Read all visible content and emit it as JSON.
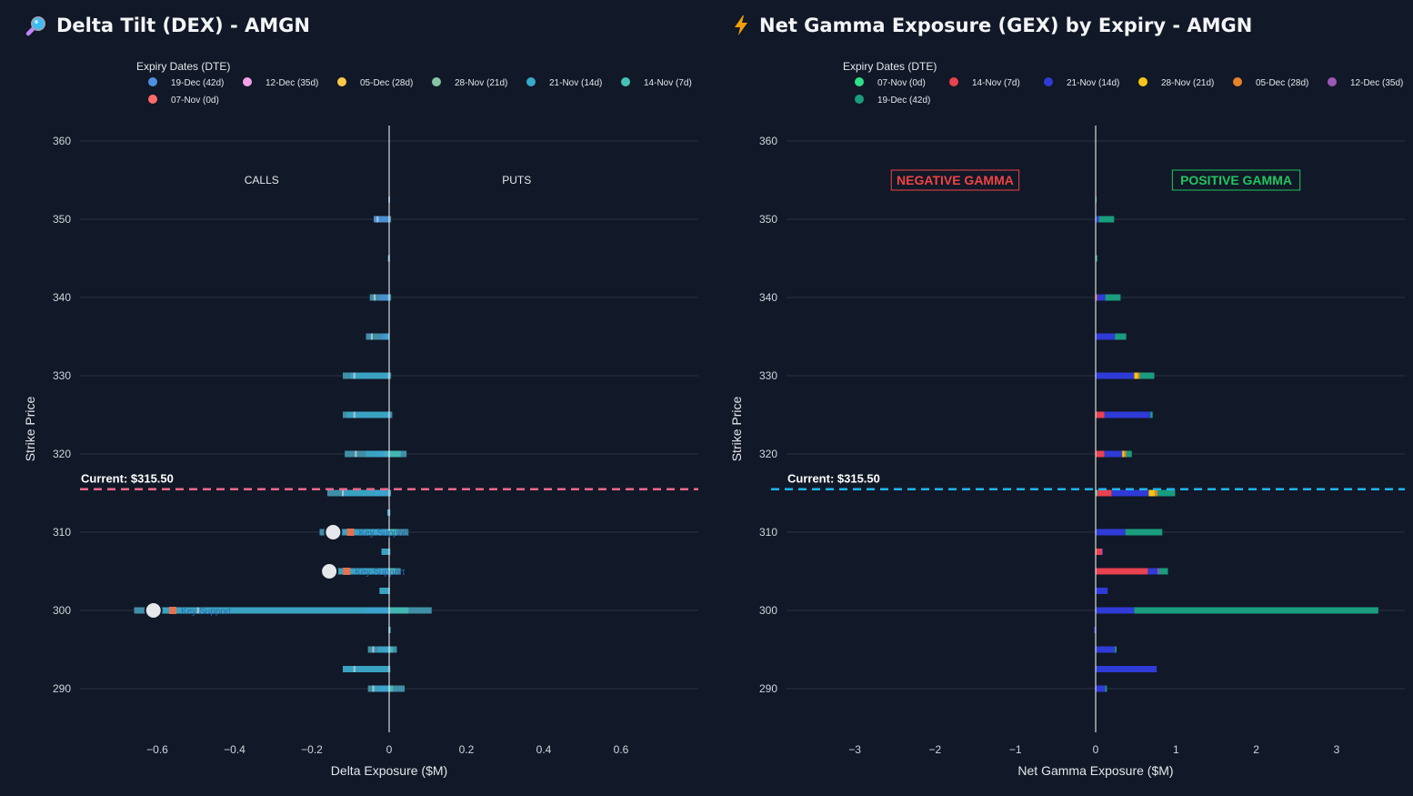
{
  "app": {
    "left_title": "Delta Tilt (DEX) - AMGN",
    "right_title": "Net Gamma Exposure (GEX) by Expiry - AMGN",
    "left_title_icon": "magnifier-icon",
    "right_title_icon": "lightning-icon"
  },
  "chart_data": [
    {
      "type": "bar",
      "orientation": "horizontal",
      "stacked": true,
      "title": "Delta Tilt (DEX) - AMGN",
      "xlabel": "Delta Exposure ($M)",
      "ylabel": "Strike Price",
      "xlim": [
        -0.8,
        0.8
      ],
      "ylim": [
        284,
        362
      ],
      "xticks": [
        -0.6,
        -0.4,
        -0.2,
        0,
        0.2,
        0.4,
        0.6
      ],
      "xtick_labels": [
        "−0.6",
        "−0.4",
        "−0.2",
        "0",
        "0.2",
        "0.4",
        "0.6"
      ],
      "yticks": [
        290,
        300,
        310,
        320,
        330,
        340,
        350,
        360
      ],
      "legend_title": "Expiry Dates (DTE)",
      "legend_position": "top",
      "strikes": [
        352.5,
        350,
        345,
        340,
        335,
        330,
        325,
        320,
        315,
        312.5,
        310,
        307.5,
        305,
        302.5,
        300,
        297.5,
        295,
        292.5,
        290
      ],
      "series": [
        {
          "name": "19-Dec (42d)",
          "color": "#4f8fe0",
          "values": [
            0.002,
            -0.04,
            0,
            -0.025,
            -0.02,
            -0.012,
            -0.01,
            -0.03,
            -0.035,
            0,
            -0.04,
            0,
            -0.02,
            0,
            -0.06,
            0,
            -0.015,
            0,
            -0.025
          ]
        },
        {
          "name": "12-Dec (35d)",
          "color": "#f3a0e8",
          "values": [
            0,
            0,
            0,
            0,
            0,
            0,
            0,
            0,
            0,
            0,
            0,
            0,
            0,
            0,
            0,
            0,
            0,
            0,
            0
          ]
        },
        {
          "name": "05-Dec (28d)",
          "color": "#f7c948",
          "values": [
            0,
            0,
            0,
            0,
            0,
            0,
            0,
            0,
            0,
            0,
            0,
            0,
            0,
            0,
            0,
            0,
            0,
            0,
            0
          ]
        },
        {
          "name": "28-Nov (21d)",
          "color": "#86c5a4",
          "values": [
            0,
            0,
            0,
            0,
            0,
            -0.005,
            0,
            -0.012,
            0,
            0,
            0,
            0,
            0,
            0,
            0,
            0,
            0,
            0,
            0
          ]
        },
        {
          "name": "21-Nov (14d)",
          "color": "#39a8c9",
          "values": [
            0,
            0,
            -0.003,
            -0.005,
            -0.01,
            -0.1,
            -0.11,
            -0.06,
            -0.12,
            -0.005,
            -0.14,
            -0.02,
            -0.13,
            -0.025,
            -0.6,
            0.003,
            -0.03,
            -0.12,
            -0.04
          ]
        },
        {
          "name": "14-Nov (7d)",
          "color": "#45c2b5",
          "values": [
            0,
            0,
            0,
            0,
            0,
            0,
            0,
            0.03,
            0,
            0,
            0.02,
            0,
            0.015,
            0,
            0.05,
            0,
            0.01,
            0,
            0.01
          ]
        },
        {
          "name": "07-Nov (0d)",
          "color": "#ff6b6b",
          "values": [
            0,
            0,
            0,
            0,
            0,
            0,
            0,
            0,
            0,
            0,
            0,
            0,
            0,
            0,
            0,
            0,
            0,
            0,
            0
          ]
        }
      ],
      "bar_spans": [
        {
          "strike": 352.5,
          "min": -0.002,
          "max": 0.002
        },
        {
          "strike": 350,
          "min": -0.04,
          "max": 0.005
        },
        {
          "strike": 345,
          "min": -0.003,
          "max": 0.002
        },
        {
          "strike": 340,
          "min": -0.05,
          "max": 0.005
        },
        {
          "strike": 335,
          "min": -0.06,
          "max": 0.0
        },
        {
          "strike": 330,
          "min": -0.12,
          "max": 0.005
        },
        {
          "strike": 325,
          "min": -0.12,
          "max": 0.008
        },
        {
          "strike": 320,
          "min": -0.115,
          "max": 0.045
        },
        {
          "strike": 315,
          "min": -0.16,
          "max": 0.005
        },
        {
          "strike": 312.5,
          "min": -0.004,
          "max": 0.003
        },
        {
          "strike": 310,
          "min": -0.18,
          "max": 0.05
        },
        {
          "strike": 307.5,
          "min": -0.02,
          "max": 0.003
        },
        {
          "strike": 305,
          "min": -0.15,
          "max": 0.03
        },
        {
          "strike": 302.5,
          "min": -0.025,
          "max": 0.002
        },
        {
          "strike": 300,
          "min": -0.66,
          "max": 0.11
        },
        {
          "strike": 297.5,
          "min": -0.002,
          "max": 0.004
        },
        {
          "strike": 295,
          "min": -0.055,
          "max": 0.02
        },
        {
          "strike": 292.5,
          "min": -0.12,
          "max": 0.003
        },
        {
          "strike": 290,
          "min": -0.055,
          "max": 0.04
        }
      ],
      "key_supports": [
        {
          "strike": 310,
          "value": -0.145,
          "marker_value": -0.1,
          "label": "Key Support"
        },
        {
          "strike": 305,
          "value": -0.155,
          "marker_value": -0.11,
          "label": "Key Support"
        },
        {
          "strike": 300,
          "value": -0.61,
          "marker_value": -0.56,
          "label": "Key Support"
        }
      ],
      "current_price": {
        "value": 315.5,
        "label": "Current: $315.50",
        "color": "#f2688a"
      },
      "annotations": [
        {
          "text": "CALLS",
          "x": -0.33,
          "y": 355
        },
        {
          "text": "PUTS",
          "x": 0.33,
          "y": 355
        }
      ]
    },
    {
      "type": "bar",
      "orientation": "horizontal",
      "stacked": true,
      "title": "Net Gamma Exposure (GEX) by Expiry - AMGN",
      "xlabel": "Net Gamma Exposure ($M)",
      "ylabel": "Strike Price",
      "xlim": [
        -3.85,
        3.85
      ],
      "ylim": [
        284,
        362
      ],
      "xticks": [
        -3,
        -2,
        -1,
        0,
        1,
        2,
        3
      ],
      "xtick_labels": [
        "−3",
        "−2",
        "−1",
        "0",
        "1",
        "2",
        "3"
      ],
      "yticks": [
        290,
        300,
        310,
        320,
        330,
        340,
        350,
        360
      ],
      "legend_title": "Expiry Dates (DTE)",
      "legend_position": "top",
      "strikes": [
        352.5,
        350,
        345,
        340,
        335,
        330,
        325,
        320,
        315,
        312.5,
        310,
        307.5,
        305,
        302.5,
        300,
        297.5,
        295,
        292.5,
        290
      ],
      "series": [
        {
          "name": "07-Nov (0d)",
          "color": "#2ee08a",
          "values": [
            0,
            0,
            0,
            0,
            0,
            0,
            0,
            0,
            0.02,
            0,
            0,
            0,
            0,
            0,
            0,
            0,
            0,
            0,
            0
          ]
        },
        {
          "name": "14-Nov (7d)",
          "color": "#e8414f",
          "values": [
            0,
            0,
            0,
            0.02,
            0,
            0,
            0.11,
            0.11,
            0.18,
            0,
            0,
            0.08,
            0.65,
            0,
            0,
            0,
            0,
            0,
            0
          ]
        },
        {
          "name": "21-Nov (14d)",
          "color": "#2f3bd6",
          "values": [
            0,
            0.04,
            0,
            0.1,
            0.24,
            0.48,
            0.57,
            0.22,
            0.46,
            0,
            0.37,
            0.01,
            0.12,
            0.15,
            0.48,
            -0.02,
            0.24,
            0.76,
            0.12
          ]
        },
        {
          "name": "28-Nov (21d)",
          "color": "#f5c518",
          "values": [
            0,
            0,
            0,
            0,
            0,
            0.05,
            0,
            0.03,
            0.08,
            0,
            0,
            0,
            0,
            0,
            0,
            0,
            0,
            0,
            0
          ]
        },
        {
          "name": "05-Dec (28d)",
          "color": "#e8832a",
          "values": [
            0,
            0,
            0,
            0,
            0,
            0.02,
            0,
            0.02,
            0.03,
            0,
            0,
            0,
            0,
            0,
            0,
            0,
            0,
            0,
            0
          ]
        },
        {
          "name": "12-Dec (35d)",
          "color": "#9b59b6",
          "values": [
            0,
            0,
            0,
            0,
            0,
            0,
            0,
            0,
            0,
            0,
            0,
            0,
            0.02,
            0,
            0,
            0,
            0,
            0,
            0
          ]
        },
        {
          "name": "19-Dec (42d)",
          "color": "#1a9c7e",
          "values": [
            0.003,
            0.19,
            0.02,
            0.19,
            0.14,
            0.18,
            0.03,
            0.07,
            0.22,
            0,
            0.46,
            0,
            0.11,
            0,
            3.04,
            0,
            0.02,
            0,
            0.02
          ]
        }
      ],
      "current_price": {
        "value": 315.5,
        "label": "Current: $315.50",
        "color": "#1fb6f0"
      },
      "annotations": [
        {
          "text": "NEGATIVE GAMMA",
          "x": -1.75,
          "y": 355,
          "color": "#ef4444"
        },
        {
          "text": "POSITIVE GAMMA",
          "x": 1.75,
          "y": 355,
          "color": "#22c55e"
        }
      ]
    }
  ]
}
